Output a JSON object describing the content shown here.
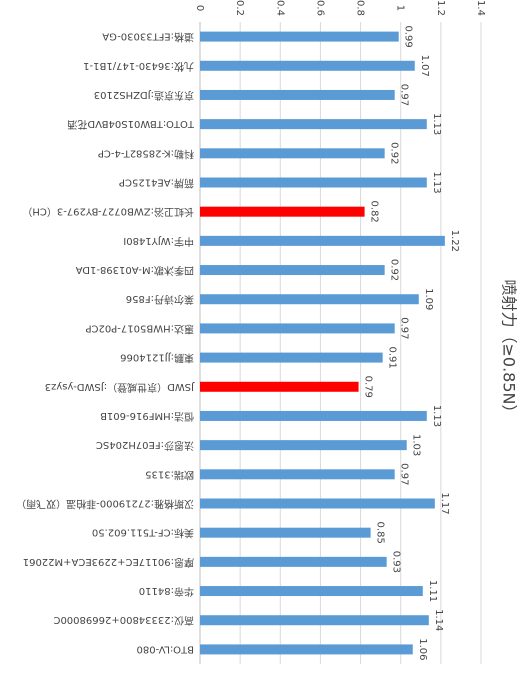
{
  "chart_data": {
    "type": "bar",
    "title": "喷射力（≥0.85N）",
    "categories": [
      "道格:EFT33030-GA",
      "九牧:36430-147/1B1-1",
      "京东京造:JDZHS2103",
      "TOTO:TBW01S04BVD花洒",
      "科勒:K-28582T-4-CP",
      "箭牌:AE4125CP",
      "长虹卫浴:ZWB0727-BY297-3（CH）",
      "中宇:WJY1480I",
      "四季沐歌:M-A01398-1DA",
      "莱尔诗丹:F856",
      "惠达:HWB5017-P02CP",
      "東鹏:JJ1214066",
      "JSWD（京世威登）:JSWD-ysyz3",
      "恒洁:HMF916-601B",
      "法恩莎:FE07H204SC",
      "欧瑞:3135",
      "汉斯格雅:27219000-菲柏温（双飞雨）",
      "美标:CF-T511.602.50",
      "摩恩:90117EC+2293ECA+M22061",
      "华帝:84110",
      "高仪:23334800+26698000C",
      "BTO:LV-080"
    ],
    "values": [
      0.99,
      1.07,
      0.97,
      1.13,
      0.92,
      1.13,
      0.82,
      1.22,
      0.92,
      1.09,
      0.97,
      0.91,
      0.79,
      1.13,
      1.03,
      0.97,
      1.17,
      0.85,
      0.93,
      1.11,
      1.14,
      1.06
    ],
    "colors": [
      "#5b9bd5",
      "#5b9bd5",
      "#5b9bd5",
      "#5b9bd5",
      "#5b9bd5",
      "#5b9bd5",
      "#ff0000",
      "#5b9bd5",
      "#5b9bd5",
      "#5b9bd5",
      "#5b9bd5",
      "#5b9bd5",
      "#ff0000",
      "#5b9bd5",
      "#5b9bd5",
      "#5b9bd5",
      "#5b9bd5",
      "#5b9bd5",
      "#5b9bd5",
      "#5b9bd5",
      "#5b9bd5",
      "#5b9bd5"
    ],
    "xlim": [
      0,
      1.4
    ],
    "xticks": [
      0,
      0.2,
      0.4,
      0.6,
      0.8,
      1,
      1.2,
      1.4
    ],
    "grid": true
  }
}
